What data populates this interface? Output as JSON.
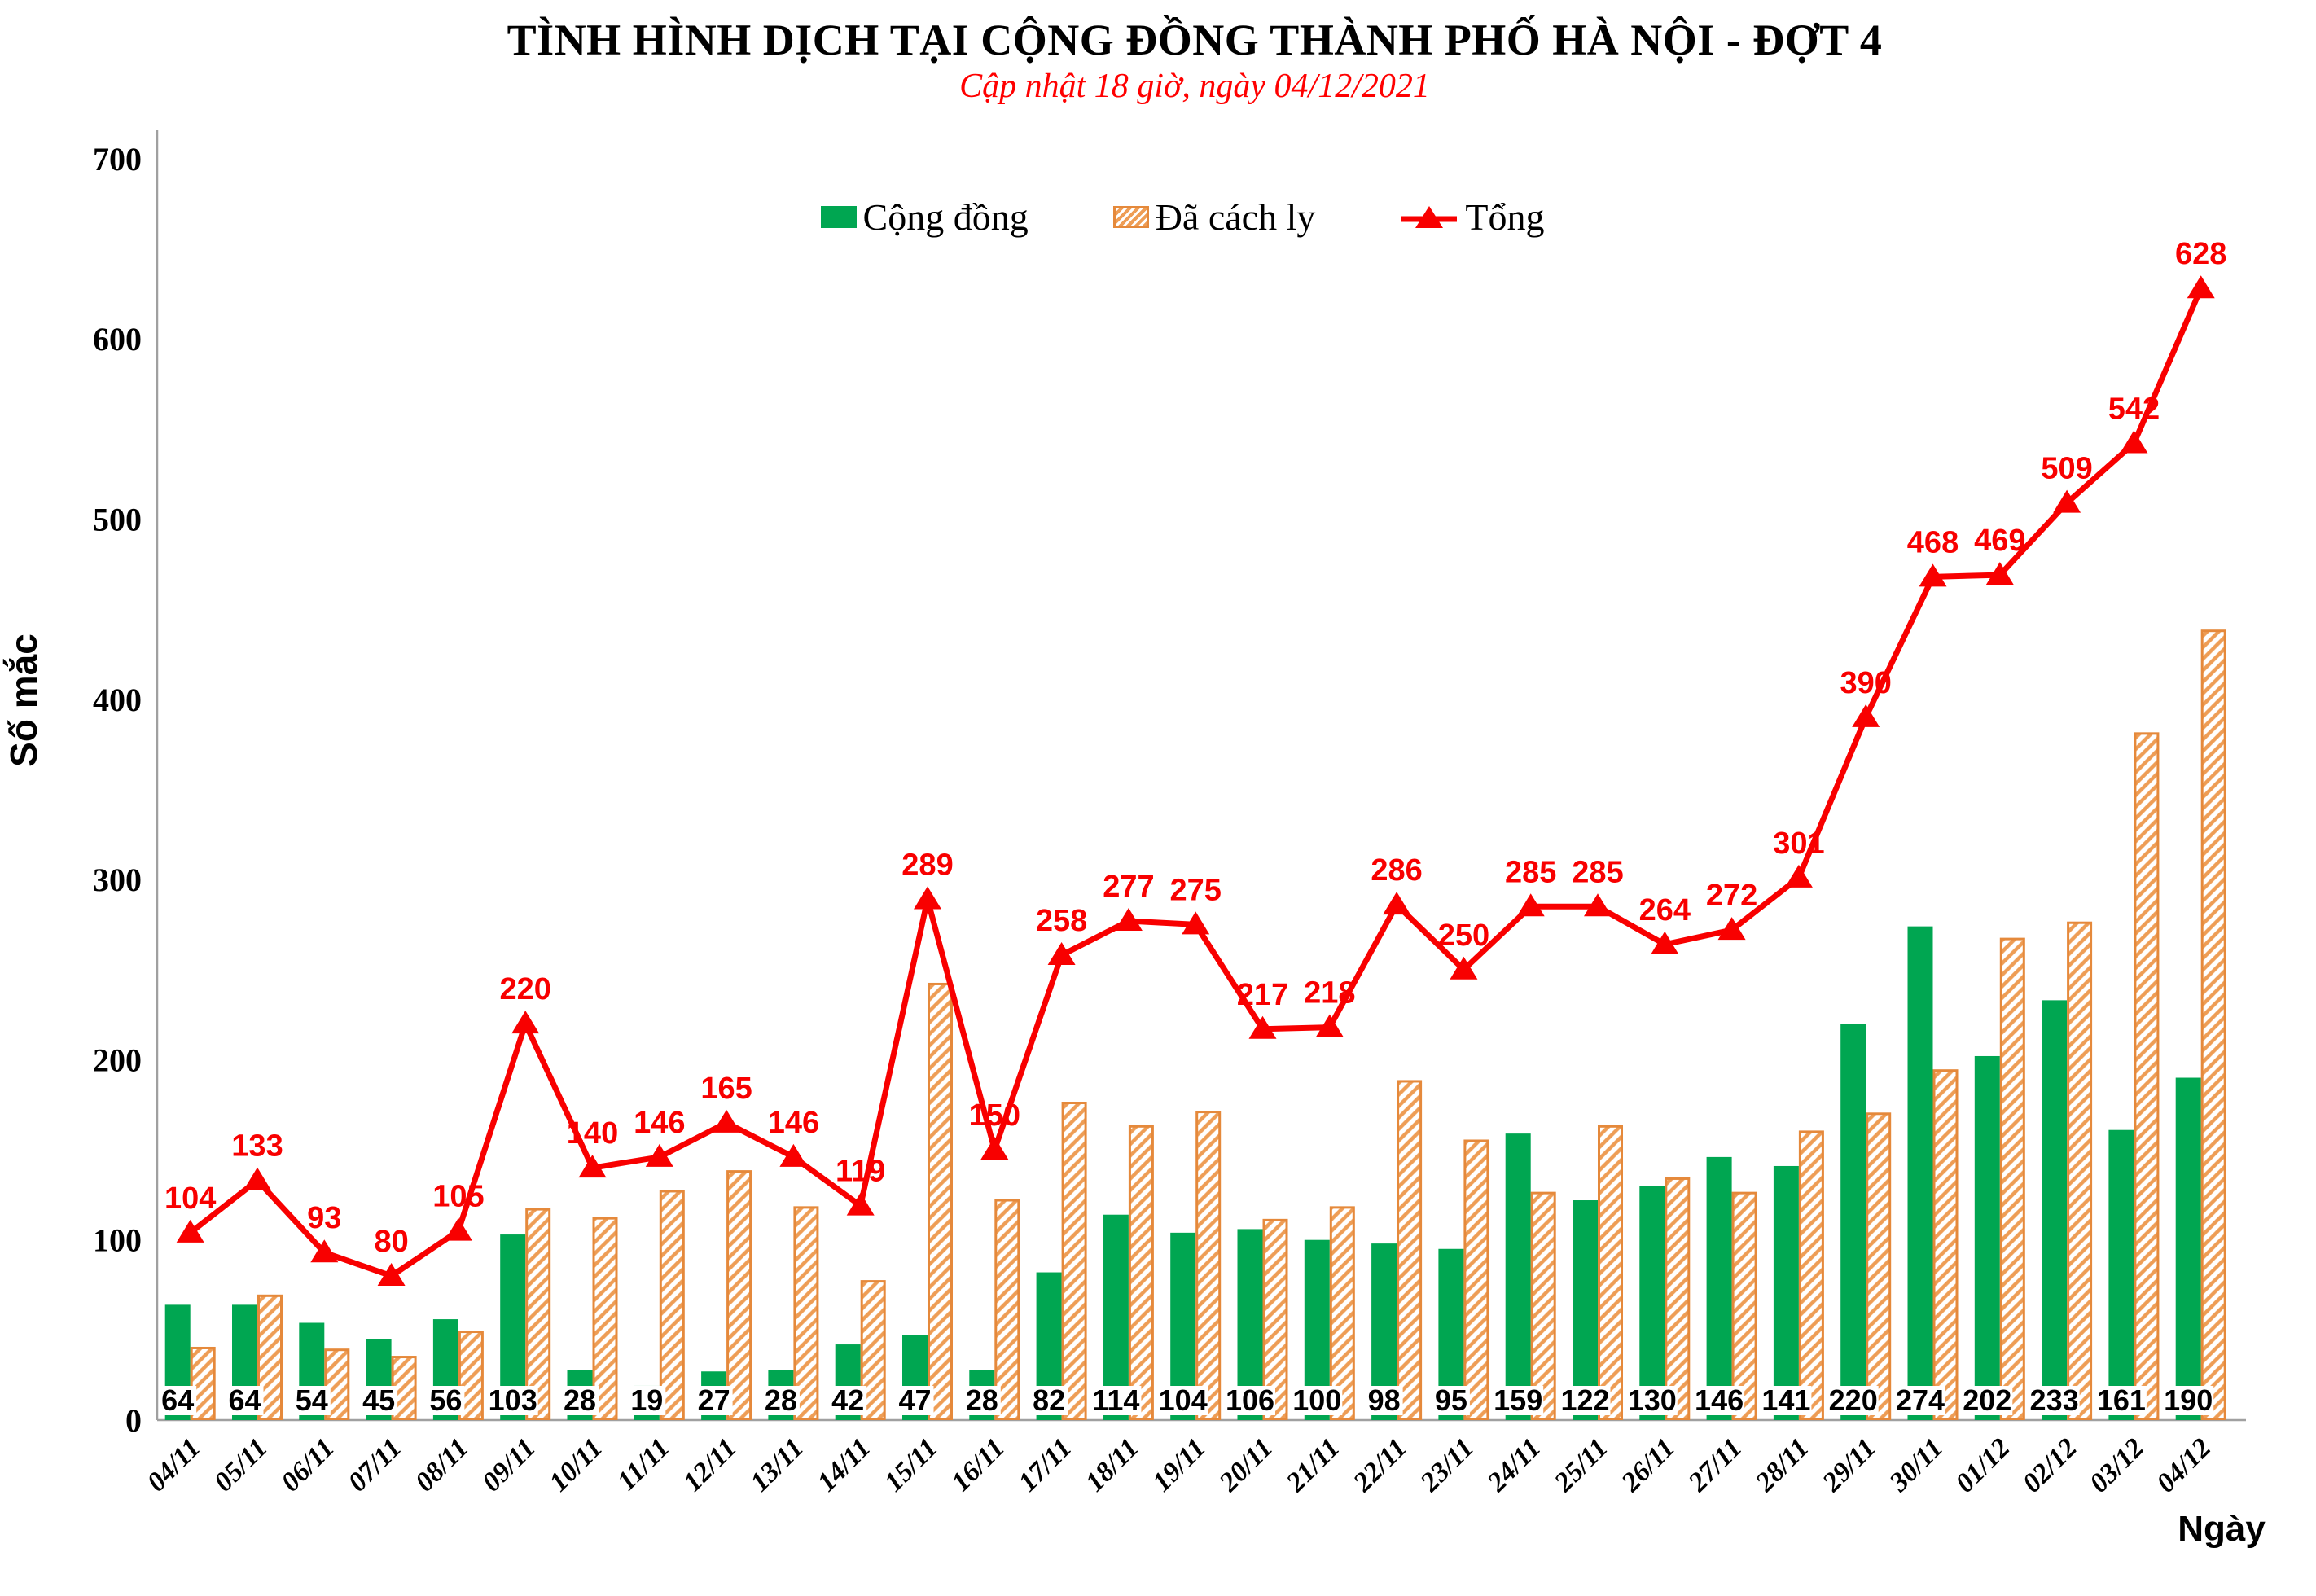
{
  "page": {
    "title": "TÌNH HÌNH DỊCH TẠI CỘNG ĐỒNG THÀNH PHỐ HÀ NỘI - ĐỢT 4",
    "subtitle": "Cập nhật 18 giờ, ngày 04/12/2021"
  },
  "colors": {
    "community_green": "#00A651",
    "quarantine_orange": "#EE9D55",
    "quarantine_border": "#E5893B",
    "total_red": "#F80000",
    "subtitle_red": "#FF0000",
    "axis_gray": "#A0A0A0",
    "label_black": "#000000"
  },
  "chart_data": {
    "type": "combo-bar-line",
    "title": "TÌNH HÌNH DỊCH TẠI CỘNG ĐỒNG THÀNH PHỐ HÀ NỘI - ĐỢT 4",
    "subtitle": "Cập nhật 18 giờ, ngày 04/12/2021",
    "xlabel": "Ngày",
    "ylabel": "Số mắc",
    "ylim": [
      0,
      700
    ],
    "yticks": [
      0,
      100,
      200,
      300,
      400,
      500,
      600,
      700
    ],
    "grid": false,
    "legend_position": "top-center",
    "categories": [
      "04/11",
      "05/11",
      "06/11",
      "07/11",
      "08/11",
      "09/11",
      "10/11",
      "11/11",
      "12/11",
      "13/11",
      "14/11",
      "15/11",
      "16/11",
      "17/11",
      "18/11",
      "19/11",
      "20/11",
      "21/11",
      "22/11",
      "23/11",
      "24/11",
      "25/11",
      "26/11",
      "27/11",
      "28/11",
      "29/11",
      "30/11",
      "01/12",
      "02/12",
      "03/12",
      "04/12"
    ],
    "series": [
      {
        "name": "Cộng đồng",
        "type": "bar",
        "style": "solid",
        "color": "#00A651",
        "value_labels": "at-bar-base-on-white-box",
        "values": [
          64,
          64,
          54,
          45,
          56,
          103,
          28,
          19,
          27,
          28,
          42,
          47,
          28,
          82,
          114,
          104,
          106,
          100,
          98,
          95,
          159,
          122,
          130,
          146,
          141,
          220,
          274,
          202,
          233,
          161,
          190
        ]
      },
      {
        "name": "Đã cách ly",
        "type": "bar",
        "style": "hatched-diagonal",
        "color": "#EE9D55",
        "values": [
          40,
          69,
          39,
          35,
          49,
          117,
          112,
          127,
          138,
          118,
          77,
          242,
          122,
          176,
          163,
          171,
          111,
          118,
          188,
          155,
          126,
          163,
          134,
          126,
          160,
          170,
          194,
          267,
          276,
          381,
          438
        ]
      },
      {
        "name": "Tổng",
        "type": "line",
        "marker": "triangle-up",
        "color": "#F80000",
        "value_labels": "above-markers",
        "values": [
          104,
          133,
          93,
          80,
          105,
          220,
          140,
          146,
          165,
          146,
          119,
          289,
          150,
          258,
          277,
          275,
          217,
          218,
          286,
          250,
          285,
          285,
          264,
          272,
          301,
          390,
          468,
          469,
          509,
          542,
          628
        ]
      }
    ]
  }
}
